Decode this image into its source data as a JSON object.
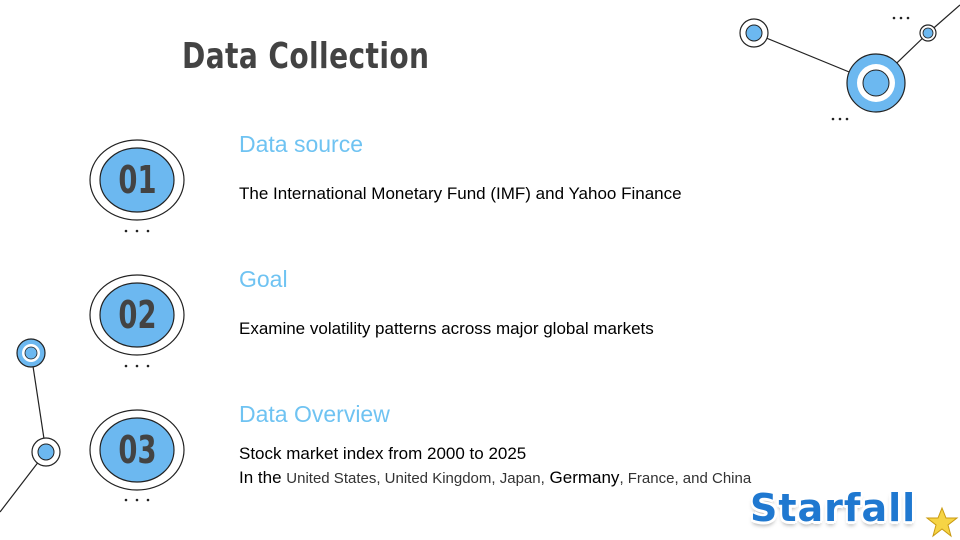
{
  "slide": {
    "title": "Data Collection",
    "items": [
      {
        "number": "01",
        "heading": "Data source",
        "lines": [
          "The International Monetary Fund (IMF) and Yahoo Finance"
        ]
      },
      {
        "number": "02",
        "heading": "Goal",
        "lines": [
          "Examine volatility patterns across major global markets"
        ]
      },
      {
        "number": "03",
        "heading": "Data Overview",
        "lines": [
          "Stock market index from 2000 to 2025"
        ],
        "line2": {
          "prefix": "In the",
          "countries_a": "United States, United Kingdom, Japan,",
          "germany": "Germany",
          "countries_b": ", France, and China"
        }
      }
    ],
    "logo_text": "Starfall",
    "colors": {
      "accent": "#6fc3f2",
      "circle_fill": "#6cb8f0",
      "text_dark": "#434343",
      "logo_blue": "#1f78d0"
    }
  }
}
